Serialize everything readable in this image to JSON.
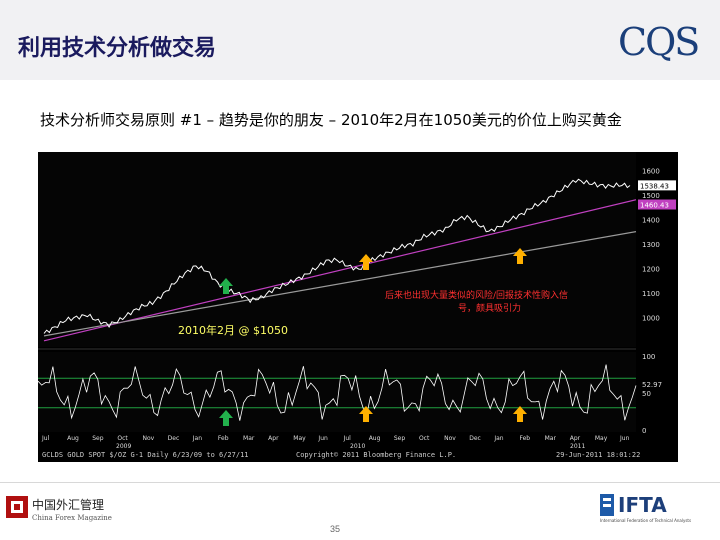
{
  "header": {
    "title": "利用技术分析做交易",
    "logo_text": "CQS"
  },
  "subtitle": "技术分析师交易原则 #1 – 趋势是你的朋友 – 2010年2月在1050美元的价位上购买黄金",
  "chart_data": {
    "type": "line",
    "series": [
      {
        "values": [
          935,
          960,
          990,
          1000,
          1010,
          985,
          970,
          990,
          1020,
          1045,
          1060,
          1095,
          1140,
          1180,
          1210,
          1190,
          1140,
          1110,
          1095,
          1070,
          1080,
          1110,
          1130,
          1150,
          1170,
          1200,
          1230,
          1235,
          1210,
          1195,
          1230,
          1250,
          1270,
          1290,
          1300,
          1330,
          1345,
          1360,
          1400,
          1410,
          1380,
          1350,
          1370,
          1400,
          1420,
          1450,
          1470,
          1500,
          1530,
          1560,
          1550,
          1540,
          1535,
          1540,
          1538
        ]
      }
    ],
    "price_labels": [
      "1538.43",
      "1460.43"
    ],
    "ylim_price": [
      900,
      1650
    ],
    "y_ticks_price": [
      "1600",
      "1500",
      "1400",
      "1300",
      "1200",
      "1100",
      "1000"
    ],
    "lower_panel_ticks": [
      "100",
      "50",
      "0"
    ],
    "lower_panel_value": "52.97",
    "x_ticks": [
      "Jul",
      "Aug",
      "Sep",
      "Oct",
      "Nov",
      "Dec",
      "Jan",
      "Feb",
      "Mar",
      "Apr",
      "May",
      "Jun",
      "Jul",
      "Aug",
      "Sep",
      "Oct",
      "Nov",
      "Dec",
      "Jan",
      "Feb",
      "Mar",
      "Apr",
      "May",
      "Jun"
    ],
    "x_year_labels": [
      "2009",
      "2010",
      "2011"
    ],
    "annotations": {
      "entry_label": "2010年2月 @ $1050",
      "later_note_line1": "后来也出现大量类似的风险/回报技术性购入信",
      "later_note_line2": "号，颇具吸引力"
    },
    "footer_left": "GCLDS GOLD SPOT $/OZ   G-1 Daily 6/23/09 to 6/27/11",
    "footer_center": "Copyright© 2011 Bloomberg Finance L.P.",
    "footer_right": "29-Jun-2011 18:01:22"
  },
  "colors": {
    "title": "#1a1a5e",
    "chart_bg": "#000000",
    "price_line": "#ffffff",
    "trend_magenta": "#c040c0",
    "trend_grey": "#9a9a9a",
    "arrow_green": "#22b14c",
    "arrow_orange": "#ffb000",
    "annotation_red": "#ff2020",
    "annotation_yellow": "#ffff66"
  },
  "page_number": "35",
  "footer": {
    "cn_logo_text": "中国外汇管理",
    "cn_logo_sub": "China Forex Magazine",
    "ifta_text": "IFTA",
    "ifta_sub": "International Federation of Technical Analysts"
  }
}
